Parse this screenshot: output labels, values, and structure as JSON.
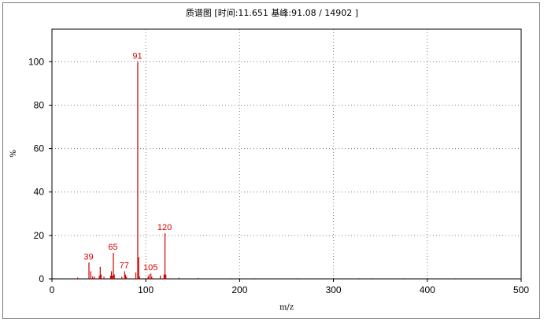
{
  "chart_data": {
    "type": "bar",
    "title_prefix": "质谱图",
    "title_info": "[时间:11.651 基峰:91.08 / 14902 ]",
    "xlabel": "m/z",
    "ylabel": "%",
    "xlim": [
      0,
      500
    ],
    "ylim": [
      0,
      115
    ],
    "x_ticks": [
      0,
      100,
      200,
      300,
      400,
      500
    ],
    "y_ticks": [
      0,
      20,
      40,
      60,
      80,
      100
    ],
    "grid": true,
    "line_color": "#cc0000",
    "label_color": "#d80000",
    "peaks": [
      {
        "mz": 27,
        "intensity": 0.6
      },
      {
        "mz": 39,
        "intensity": 7.5
      },
      {
        "mz": 41,
        "intensity": 3.5
      },
      {
        "mz": 43,
        "intensity": 1.2
      },
      {
        "mz": 45,
        "intensity": 1.0
      },
      {
        "mz": 50,
        "intensity": 1.5
      },
      {
        "mz": 51,
        "intensity": 5.5
      },
      {
        "mz": 52,
        "intensity": 2.0
      },
      {
        "mz": 55,
        "intensity": 1.0
      },
      {
        "mz": 62,
        "intensity": 1.5
      },
      {
        "mz": 63,
        "intensity": 3.5
      },
      {
        "mz": 64,
        "intensity": 1.5
      },
      {
        "mz": 65,
        "intensity": 12.0
      },
      {
        "mz": 66,
        "intensity": 2.0
      },
      {
        "mz": 74,
        "intensity": 1.0
      },
      {
        "mz": 77,
        "intensity": 3.5
      },
      {
        "mz": 78,
        "intensity": 2.0
      },
      {
        "mz": 79,
        "intensity": 1.0
      },
      {
        "mz": 89,
        "intensity": 3.0
      },
      {
        "mz": 91,
        "intensity": 100
      },
      {
        "mz": 92,
        "intensity": 10.0
      },
      {
        "mz": 93,
        "intensity": 1.0
      },
      {
        "mz": 102,
        "intensity": 1.0
      },
      {
        "mz": 103,
        "intensity": 2.0
      },
      {
        "mz": 105,
        "intensity": 2.5
      },
      {
        "mz": 106,
        "intensity": 1.0
      },
      {
        "mz": 115,
        "intensity": 1.5
      },
      {
        "mz": 119,
        "intensity": 2.0
      },
      {
        "mz": 120,
        "intensity": 21.0
      },
      {
        "mz": 121,
        "intensity": 2.0
      },
      {
        "mz": 135,
        "intensity": 0.5
      },
      {
        "mz": 155,
        "intensity": 0.4
      },
      {
        "mz": 190,
        "intensity": 0.3
      },
      {
        "mz": 215,
        "intensity": 0.3
      },
      {
        "mz": 262,
        "intensity": 0.3
      },
      {
        "mz": 300,
        "intensity": 0.3
      },
      {
        "mz": 327,
        "intensity": 0.3
      },
      {
        "mz": 341,
        "intensity": 0.3
      },
      {
        "mz": 375,
        "intensity": 0.3
      },
      {
        "mz": 430,
        "intensity": 0.3
      }
    ],
    "labels": [
      {
        "mz": 39,
        "text": "39",
        "intensity": 7.5
      },
      {
        "mz": 65,
        "text": "65",
        "intensity": 12.0
      },
      {
        "mz": 77,
        "text": "77",
        "intensity": 3.5
      },
      {
        "mz": 91,
        "text": "91",
        "intensity": 100
      },
      {
        "mz": 105,
        "text": "105",
        "intensity": 2.5
      },
      {
        "mz": 120,
        "text": "120",
        "intensity": 21.0
      }
    ]
  }
}
